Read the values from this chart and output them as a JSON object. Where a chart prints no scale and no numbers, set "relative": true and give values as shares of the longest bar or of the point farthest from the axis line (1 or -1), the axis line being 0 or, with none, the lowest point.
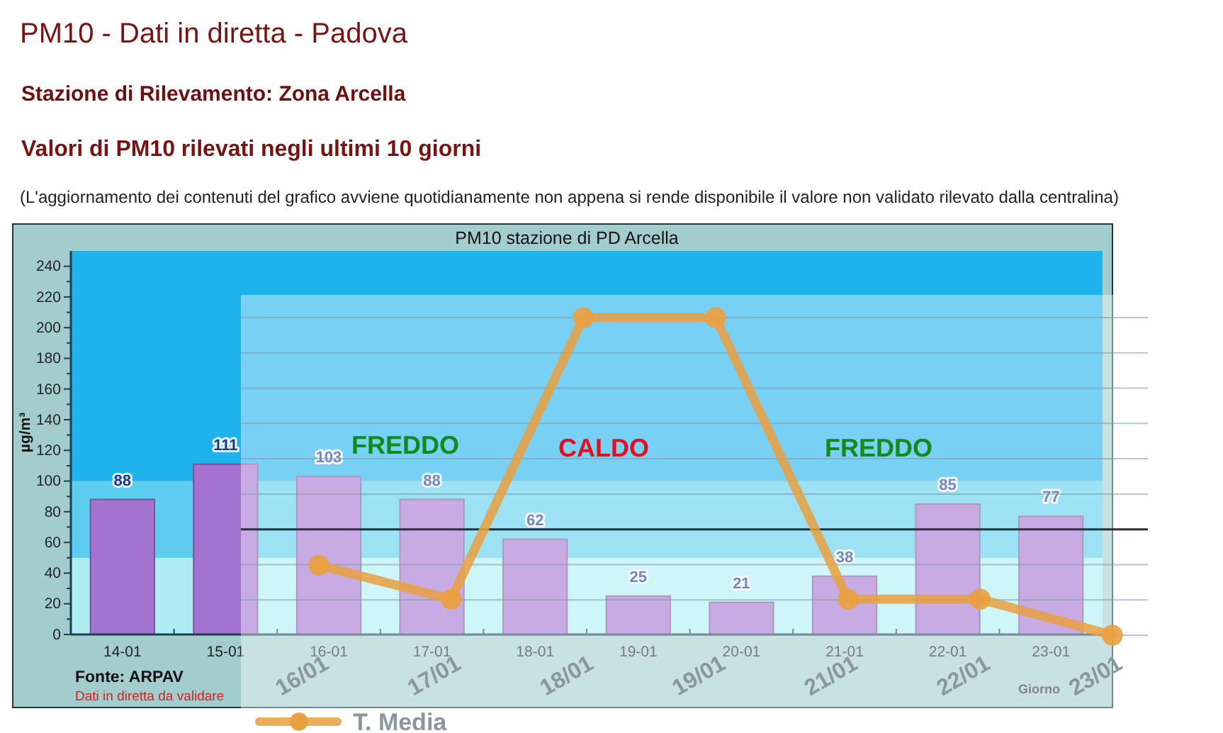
{
  "chart_data": [
    {
      "type": "bar",
      "title": "PM10 - Dati in diretta - Padova",
      "subtitle": "Stazione di Rilevamento: Zona Arcella",
      "annotations": [
        "Valori di PM10 rilevati negli ultimi 10 giorni",
        "(L'aggiornamento dei contenuti del grafico avviene quotidianamente non appena si rende disponibile il valore non validato rilevato dalla centralina)",
        "PM10 stazione di PD Arcella",
        "Fonte: ARPAV",
        "Dati in diretta da validare"
      ],
      "xlabel": "Giorno",
      "ylabel": "µg/m³",
      "categories": [
        "14-01",
        "15-01",
        "16-01",
        "17-01",
        "18-01",
        "19-01",
        "20-01",
        "21-01",
        "22-01",
        "23-01"
      ],
      "values": [
        88,
        111,
        103,
        88,
        62,
        25,
        21,
        38,
        85,
        77
      ],
      "color": "#a274cf",
      "ylim": [
        0,
        250
      ],
      "yticks": [
        0,
        {
          "value": 10,
          "label": null
        },
        20,
        {
          "value": 30,
          "label": null
        },
        40,
        {
          "value": 50,
          "label": null
        },
        60,
        {
          "value": 70,
          "label": null
        },
        80,
        {
          "value": 90,
          "label": null
        },
        100,
        {
          "value": 110,
          "label": null
        },
        120,
        {
          "value": 130,
          "label": null
        },
        140,
        {
          "value": 150,
          "label": null
        },
        160,
        {
          "value": 170,
          "label": null
        },
        180,
        {
          "value": 190,
          "label": null
        },
        200,
        {
          "value": 210,
          "label": null
        },
        220,
        {
          "value": 230,
          "label": null
        },
        240
      ],
      "data_labels": true,
      "bands": [
        {
          "axis": "y",
          "from": 0,
          "to": 50,
          "color": "#aeeef2"
        },
        {
          "axis": "y",
          "from": 50,
          "to": 100,
          "color": "#5ccdef"
        },
        {
          "axis": "y",
          "from": 100,
          "to": 250,
          "color": "#1fb3ee"
        }
      ]
    },
    {
      "type": "line",
      "categories": [
        "16/01",
        "17/01",
        "18/01",
        "19/01",
        "21/01",
        "22/01",
        "23/01"
      ],
      "series": [
        {
          "name": "T. Media",
          "color": "#e9a040",
          "values": [
            -0.17,
            -0.33,
            1,
            1,
            -0.33,
            -0.33,
            -0.5
          ]
        }
      ],
      "relative": true,
      "marker": "circle",
      "grid": true,
      "legend": "bottom",
      "annotations": [
        "FREDDO",
        "CALDO",
        "FREDDO"
      ]
    }
  ]
}
